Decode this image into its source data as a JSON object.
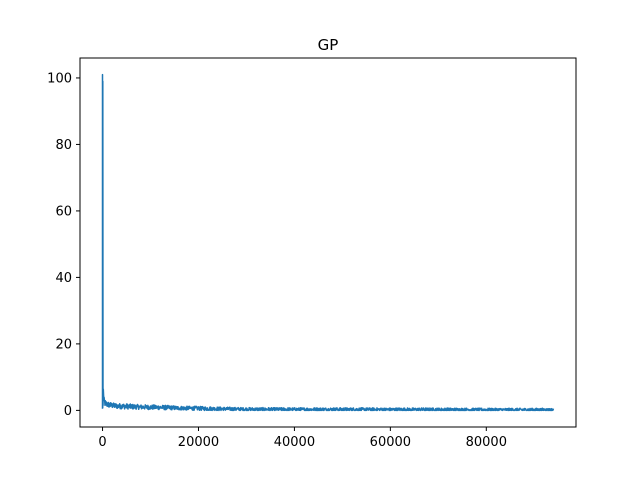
{
  "chart_data": {
    "type": "line",
    "title": "GP",
    "xlabel": "",
    "ylabel": "",
    "xlim": [
      -4700,
      98700
    ],
    "ylim": [
      -5,
      106
    ],
    "x_ticks": [
      0,
      20000,
      40000,
      60000,
      80000
    ],
    "x_tick_labels": [
      "0",
      "20000",
      "40000",
      "60000",
      "80000"
    ],
    "y_ticks": [
      0,
      20,
      40,
      60,
      80,
      100
    ],
    "y_tick_labels": [
      "0",
      "20",
      "40",
      "60",
      "80",
      "100"
    ],
    "grid": false,
    "series_color": "#1f77b4",
    "series": [
      {
        "x": [
          0,
          80,
          150,
          300,
          500,
          800,
          1200,
          2000,
          3000,
          5000,
          8000,
          12000,
          16000,
          20000,
          25000,
          30000,
          40000,
          50000,
          60000,
          70000,
          80000,
          90000,
          94000
        ],
        "y": [
          101,
          30,
          6,
          3,
          2.2,
          1.9,
          1.7,
          1.5,
          1.3,
          1.2,
          1.0,
          0.9,
          0.7,
          0.6,
          0.45,
          0.35,
          0.3,
          0.3,
          0.25,
          0.25,
          0.2,
          0.2,
          0.2
        ],
        "noise": [
          2.5,
          1.2,
          1.1,
          1.0,
          1.0,
          0.9,
          0.9,
          0.8,
          0.8,
          0.8,
          0.7,
          0.7,
          0.6,
          0.6,
          0.55,
          0.5,
          0.5,
          0.5,
          0.5,
          0.5,
          0.45,
          0.45,
          0.4
        ]
      }
    ]
  }
}
